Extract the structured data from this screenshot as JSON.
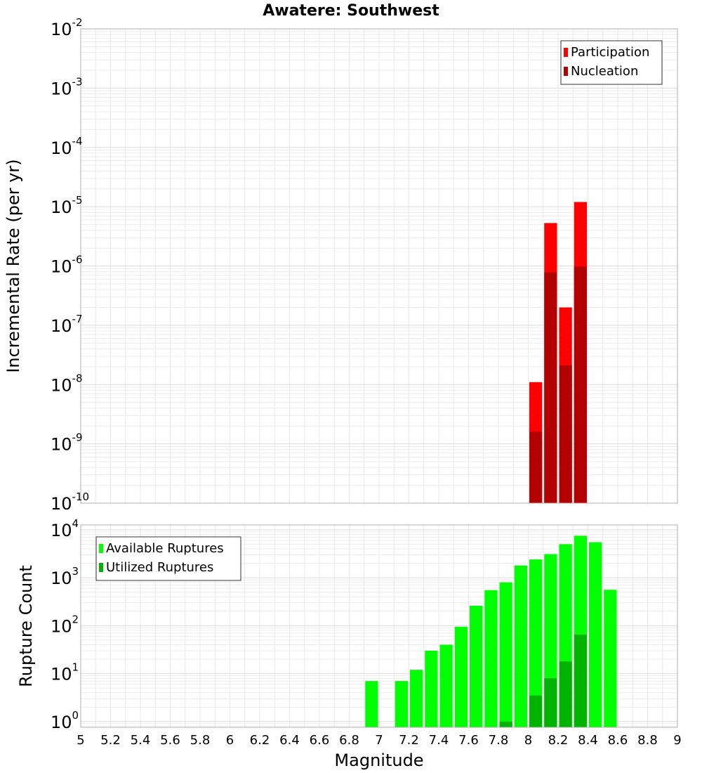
{
  "chart_data": [
    {
      "type": "bar",
      "title": "Awatere: Southwest",
      "xlabel": "",
      "ylabel": "Incremental Rate (per yr)",
      "yscale": "log",
      "xlim": [
        5,
        9
      ],
      "ylim_exp": [
        -10,
        -2
      ],
      "ytick_exponents": [
        "-10",
        "-9",
        "-8",
        "-7",
        "-6",
        "-5",
        "-4",
        "-3",
        "-2"
      ],
      "legend_position": "top-right",
      "bin_width": 0.1,
      "series": [
        {
          "name": "Participation",
          "color": "#ff0000",
          "x": [
            8.05,
            8.15,
            8.25,
            8.35
          ],
          "values": [
            1.1e-08,
            5.3e-06,
            2e-07,
            1.2e-05
          ]
        },
        {
          "name": "Nucleation",
          "color": "#b30000",
          "x": [
            8.05,
            8.15,
            8.25,
            8.35
          ],
          "values": [
            1.6e-09,
            7.8e-07,
            2.1e-08,
            9.8e-07
          ]
        }
      ]
    },
    {
      "type": "bar",
      "xlabel": "Magnitude",
      "ylabel": "Rupture Count",
      "yscale": "log",
      "xlim": [
        5,
        9
      ],
      "ylim_exp": [
        -0.12,
        4.1
      ],
      "ytick_exponents": [
        "0",
        "1",
        "2",
        "3",
        "4"
      ],
      "xtick_labels": [
        "5",
        "5.2",
        "5.4",
        "5.6",
        "5.8",
        "6",
        "6.2",
        "6.4",
        "6.6",
        "6.8",
        "7",
        "7.2",
        "7.4",
        "7.6",
        "7.8",
        "8",
        "8.2",
        "8.4",
        "8.6",
        "8.8",
        "9"
      ],
      "legend_position": "top-left",
      "bin_width": 0.1,
      "series": [
        {
          "name": "Available Ruptures",
          "color": "#00ff00",
          "x": [
            6.95,
            7.15,
            7.25,
            7.35,
            7.45,
            7.55,
            7.65,
            7.75,
            7.85,
            7.95,
            8.05,
            8.15,
            8.25,
            8.35,
            8.45,
            8.55
          ],
          "values": [
            7,
            7,
            12,
            30,
            40,
            95,
            260,
            550,
            800,
            1800,
            2400,
            3100,
            5000,
            7500,
            5500,
            560
          ]
        },
        {
          "name": "Utilized Ruptures",
          "color": "#00b300",
          "x": [
            7.85,
            8.05,
            8.15,
            8.25,
            8.35
          ],
          "values": [
            1,
            3.5,
            8,
            18,
            65
          ]
        }
      ]
    }
  ]
}
